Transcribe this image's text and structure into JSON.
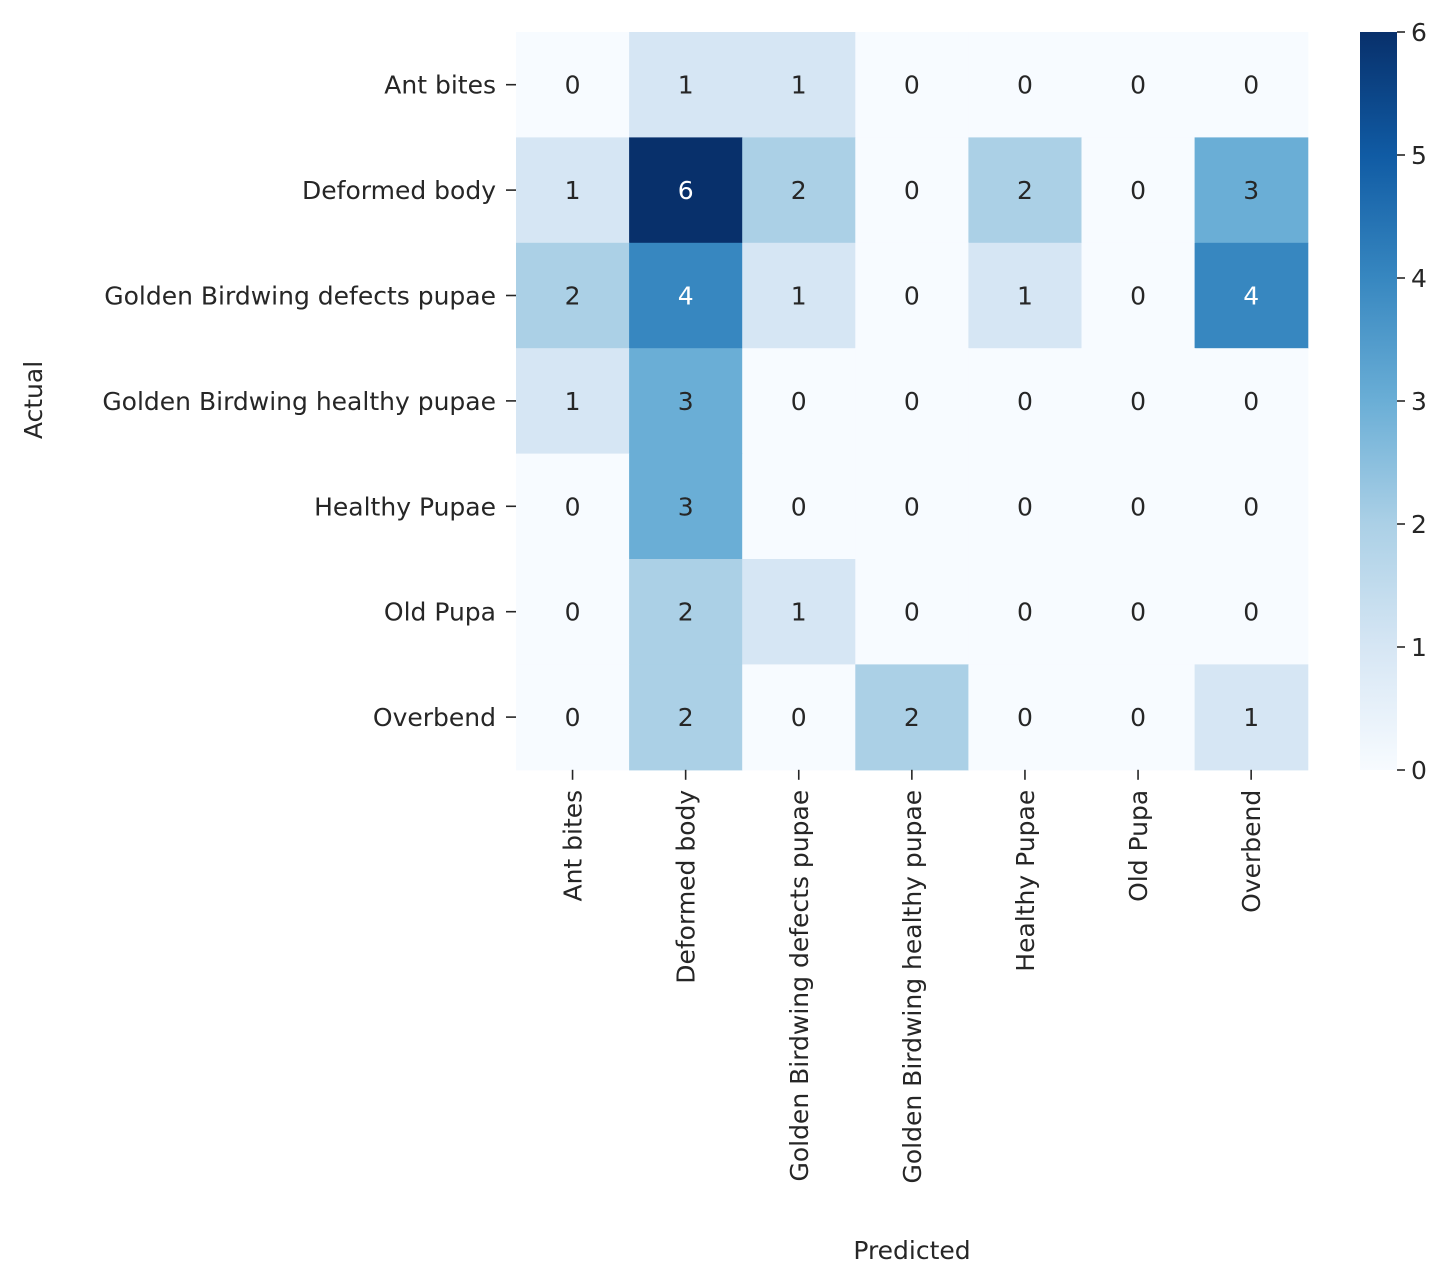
{
  "chart_data": {
    "type": "heatmap",
    "title": "",
    "xlabel": "Predicted",
    "ylabel": "Actual",
    "x_categories": [
      "Ant bites",
      "Deformed body",
      "Golden Birdwing defects pupae",
      "Golden Birdwing healthy pupae",
      "Healthy Pupae",
      "Old Pupa",
      "Overbend"
    ],
    "y_categories": [
      "Ant bites",
      "Deformed body",
      "Golden Birdwing defects pupae",
      "Golden Birdwing healthy pupae",
      "Healthy Pupae",
      "Old Pupa",
      "Overbend"
    ],
    "values": [
      [
        0,
        1,
        1,
        0,
        0,
        0,
        0
      ],
      [
        1,
        6,
        2,
        0,
        2,
        0,
        3
      ],
      [
        2,
        4,
        1,
        0,
        1,
        0,
        4
      ],
      [
        1,
        3,
        0,
        0,
        0,
        0,
        0
      ],
      [
        0,
        3,
        0,
        0,
        0,
        0,
        0
      ],
      [
        0,
        2,
        1,
        0,
        0,
        0,
        0
      ],
      [
        0,
        2,
        0,
        2,
        0,
        0,
        1
      ]
    ],
    "colorbar": {
      "range": [
        0,
        6
      ],
      "ticks": [
        0,
        1,
        2,
        3,
        4,
        5,
        6
      ],
      "colormap": "Blues",
      "colors": [
        "#f7fbff",
        "#d6e6f4",
        "#abd0e6",
        "#6aaed6",
        "#3787c0",
        "#105ba4",
        "#08306b"
      ]
    },
    "annotations": true
  }
}
